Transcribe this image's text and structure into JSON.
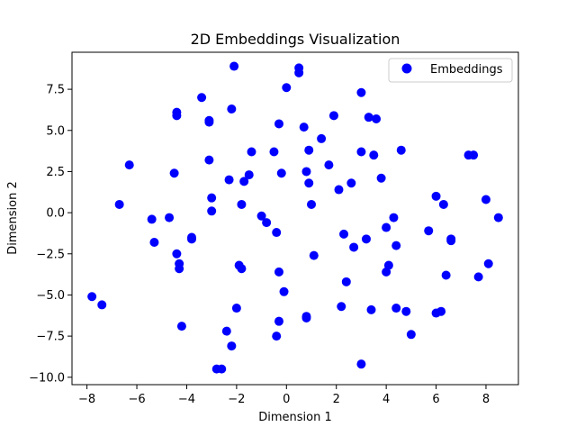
{
  "chart_data": {
    "type": "scatter",
    "title": "2D Embeddings Visualization",
    "xlabel": "Dimension 1",
    "ylabel": "Dimension 2",
    "xlim": [
      -8.6,
      9.3
    ],
    "ylim": [
      -10.45,
      9.75
    ],
    "xticks": [
      -8,
      -6,
      -4,
      -2,
      0,
      2,
      4,
      6,
      8
    ],
    "xtick_labels": [
      "−8",
      "−6",
      "−4",
      "−2",
      "0",
      "2",
      "4",
      "6",
      "8"
    ],
    "yticks": [
      -10.0,
      -7.5,
      -5.0,
      -2.5,
      0.0,
      2.5,
      5.0,
      7.5
    ],
    "ytick_labels": [
      "−10.0",
      "−7.5",
      "−5.0",
      "−2.5",
      "0.0",
      "2.5",
      "5.0",
      "7.5"
    ],
    "grid": false,
    "legend": {
      "placement": "top-right",
      "entries": [
        "Embeddings"
      ]
    },
    "series": [
      {
        "name": "Embeddings",
        "color": "#0000ff",
        "points": [
          [
            -7.8,
            -5.1
          ],
          [
            -7.4,
            -5.6
          ],
          [
            -6.7,
            0.5
          ],
          [
            -6.3,
            2.9
          ],
          [
            -5.4,
            -0.4
          ],
          [
            -5.3,
            -1.8
          ],
          [
            -4.7,
            -0.3
          ],
          [
            -4.5,
            2.4
          ],
          [
            -4.4,
            6.1
          ],
          [
            -4.4,
            5.9
          ],
          [
            -4.4,
            -2.5
          ],
          [
            -4.3,
            -3.1
          ],
          [
            -4.3,
            -3.4
          ],
          [
            -4.2,
            -6.9
          ],
          [
            -3.8,
            -1.6
          ],
          [
            -3.8,
            -1.5
          ],
          [
            -3.4,
            7.0
          ],
          [
            -3.1,
            5.5
          ],
          [
            -3.1,
            5.6
          ],
          [
            -3.1,
            3.2
          ],
          [
            -3.0,
            0.9
          ],
          [
            -3.0,
            0.1
          ],
          [
            -2.8,
            -9.5
          ],
          [
            -2.6,
            -9.5
          ],
          [
            -2.4,
            -7.2
          ],
          [
            -2.3,
            2.0
          ],
          [
            -2.2,
            6.3
          ],
          [
            -2.2,
            -8.1
          ],
          [
            -2.1,
            8.9
          ],
          [
            -2.0,
            -5.8
          ],
          [
            -1.9,
            -3.2
          ],
          [
            -1.8,
            -3.4
          ],
          [
            -1.8,
            0.5
          ],
          [
            -1.7,
            1.9
          ],
          [
            -1.5,
            2.3
          ],
          [
            -1.4,
            3.7
          ],
          [
            -1.0,
            -0.2
          ],
          [
            -0.8,
            -0.6
          ],
          [
            -0.5,
            3.7
          ],
          [
            -0.4,
            -1.2
          ],
          [
            -0.4,
            -7.5
          ],
          [
            -0.3,
            5.4
          ],
          [
            -0.3,
            -6.6
          ],
          [
            -0.3,
            -3.6
          ],
          [
            -0.2,
            2.4
          ],
          [
            -0.1,
            -4.8
          ],
          [
            0.0,
            7.6
          ],
          [
            0.5,
            8.5
          ],
          [
            0.5,
            8.8
          ],
          [
            0.7,
            5.2
          ],
          [
            0.8,
            2.5
          ],
          [
            0.8,
            -6.3
          ],
          [
            0.8,
            -6.4
          ],
          [
            0.9,
            3.8
          ],
          [
            0.9,
            1.8
          ],
          [
            1.0,
            0.5
          ],
          [
            1.1,
            -2.6
          ],
          [
            1.4,
            4.5
          ],
          [
            1.7,
            2.9
          ],
          [
            1.9,
            5.9
          ],
          [
            2.1,
            1.4
          ],
          [
            2.2,
            -5.7
          ],
          [
            2.3,
            -1.3
          ],
          [
            2.4,
            -4.2
          ],
          [
            2.6,
            1.8
          ],
          [
            2.7,
            -2.1
          ],
          [
            3.0,
            7.3
          ],
          [
            3.0,
            3.7
          ],
          [
            3.0,
            -9.2
          ],
          [
            3.2,
            -1.6
          ],
          [
            3.3,
            5.8
          ],
          [
            3.4,
            -5.9
          ],
          [
            3.5,
            3.5
          ],
          [
            3.6,
            5.7
          ],
          [
            3.8,
            2.1
          ],
          [
            4.0,
            -0.9
          ],
          [
            4.0,
            -3.6
          ],
          [
            4.1,
            -3.2
          ],
          [
            4.3,
            -0.3
          ],
          [
            4.4,
            -2.0
          ],
          [
            4.4,
            -5.8
          ],
          [
            4.6,
            3.8
          ],
          [
            4.8,
            -6.0
          ],
          [
            5.0,
            -7.4
          ],
          [
            5.7,
            -1.1
          ],
          [
            6.0,
            1.0
          ],
          [
            6.0,
            -6.1
          ],
          [
            6.2,
            -6.0
          ],
          [
            6.3,
            0.5
          ],
          [
            6.4,
            -3.8
          ],
          [
            6.6,
            -1.7
          ],
          [
            6.6,
            -1.6
          ],
          [
            7.3,
            3.5
          ],
          [
            7.5,
            3.5
          ],
          [
            7.7,
            -3.9
          ],
          [
            8.0,
            0.8
          ],
          [
            8.1,
            -3.1
          ],
          [
            8.5,
            -0.3
          ]
        ]
      }
    ]
  }
}
